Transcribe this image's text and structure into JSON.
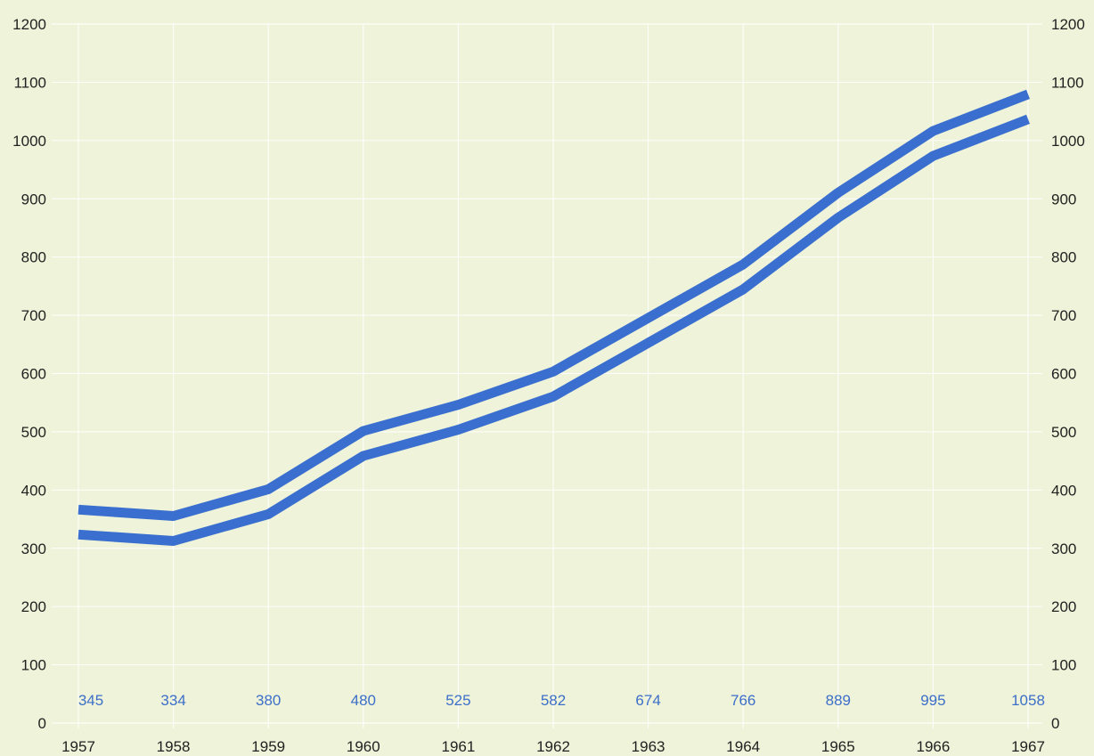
{
  "chart_data": {
    "type": "line",
    "title": "",
    "xlabel": "",
    "ylabel": "",
    "categories": [
      "1957",
      "1958",
      "1959",
      "1960",
      "1961",
      "1962",
      "1963",
      "1964",
      "1965",
      "1966",
      "1967"
    ],
    "series": [
      {
        "values": [
          345,
          334,
          380,
          480,
          525,
          582,
          674,
          766,
          889,
          995,
          1058
        ]
      }
    ],
    "data_labels": [
      "345",
      "334",
      "380",
      "480",
      "525",
      "582",
      "674",
      "766",
      "889",
      "995",
      "1058"
    ],
    "ylim": [
      0,
      1200
    ],
    "y_ticks": [
      "0",
      "100",
      "200",
      "300",
      "400",
      "500",
      "600",
      "700",
      "800",
      "900",
      "1000",
      "1100",
      "1200"
    ],
    "y_axis_sides": "left-and-right",
    "grid": true,
    "line_color": "#3a6fd0",
    "line_style": "double-band",
    "grid_color": "#ffffff",
    "background_color": "#eef3d9",
    "label_color": "#3d6fc9"
  }
}
